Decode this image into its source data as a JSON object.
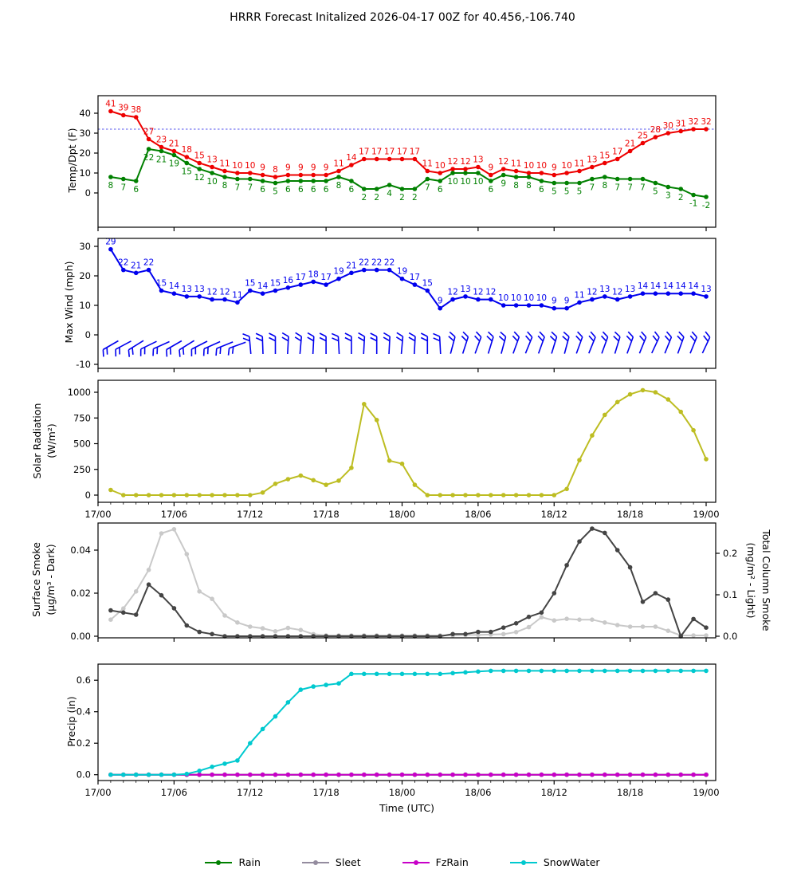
{
  "title": "HRRR Forecast Initalized 2026-04-17 00Z for 40.456,-106.740",
  "x_axis": {
    "label": "Time (UTC)",
    "tick_labels": [
      "17/00",
      "17/06",
      "17/12",
      "17/18",
      "18/00",
      "18/06",
      "18/12",
      "18/18",
      "19/00"
    ],
    "tick_hours": [
      0,
      6,
      12,
      18,
      24,
      30,
      36,
      42,
      48
    ],
    "start_hour_offset": 1
  },
  "legend": [
    {
      "label": "Rain",
      "color": "#008000"
    },
    {
      "label": "Sleet",
      "color": "#948c9f"
    },
    {
      "label": "FzRain",
      "color": "#c800c8"
    },
    {
      "label": "SnowWater",
      "color": "#00c9cf"
    }
  ],
  "chart_data": {
    "type": "line",
    "panels": [
      {
        "id": "temp_dpt",
        "ylabel": "Temp/Dpt (F)",
        "yticks": [
          {
            "v": 0,
            "t": "0"
          },
          {
            "v": 10,
            "t": "10"
          },
          {
            "v": 20,
            "t": "20"
          },
          {
            "v": 30,
            "t": "30"
          },
          {
            "v": 40,
            "t": "40"
          }
        ],
        "freezing_line": 32,
        "series": [
          {
            "name": "temperature_f",
            "color": "#ee0000",
            "label_dy": -6,
            "values": [
              41,
              39,
              38,
              27,
              23,
              21,
              18,
              15,
              13,
              11,
              10,
              10,
              9,
              8,
              9,
              9,
              9,
              9,
              11,
              14,
              17,
              17,
              17,
              17,
              17,
              11,
              10,
              12,
              12,
              13,
              9,
              12,
              11,
              10,
              10,
              9,
              10,
              11,
              13,
              15,
              17,
              21,
              25,
              28,
              30,
              31,
              32,
              32
            ]
          },
          {
            "name": "dewpoint_f",
            "color": "#008000",
            "label_dy": 14,
            "values": [
              8,
              7,
              6,
              22,
              21,
              19,
              15,
              12,
              10,
              8,
              7,
              7,
              6,
              5,
              6,
              6,
              6,
              6,
              8,
              6,
              2,
              2,
              4,
              2,
              2,
              7,
              6,
              10,
              10,
              10,
              6,
              9,
              8,
              8,
              6,
              5,
              5,
              5,
              7,
              8,
              7,
              7,
              7,
              5,
              3,
              2,
              -1,
              -2
            ]
          }
        ]
      },
      {
        "id": "max_wind",
        "ylabel": "Max Wind (mph)",
        "yticks": [
          {
            "v": -10,
            "t": "-10"
          },
          {
            "v": 0,
            "t": "0"
          },
          {
            "v": 10,
            "t": "10"
          },
          {
            "v": 20,
            "t": "20"
          },
          {
            "v": 30,
            "t": "30"
          }
        ],
        "series": [
          {
            "name": "max_wind_mph",
            "color": "#0000ee",
            "label_dy": -6,
            "values": [
              29,
              22,
              21,
              22,
              15,
              14,
              13,
              13,
              12,
              12,
              11,
              15,
              14,
              15,
              16,
              17,
              18,
              17,
              19,
              21,
              22,
              22,
              22,
              19,
              17,
              15,
              9,
              12,
              13,
              12,
              12,
              10,
              10,
              10,
              10,
              9,
              9,
              11,
              12,
              13,
              12,
              13,
              14,
              14,
              14,
              14,
              14,
              13
            ]
          }
        ],
        "barb_angles": [
          240,
          242,
          238,
          244,
          246,
          240,
          238,
          243,
          246,
          248,
          250,
          355,
          358,
          0,
          3,
          5,
          3,
          0,
          357,
          0,
          3,
          0,
          3,
          5,
          3,
          0,
          357,
          15,
          18,
          20,
          17,
          15,
          20,
          22,
          20,
          17,
          15,
          20,
          22,
          20,
          17,
          20,
          22,
          25,
          22,
          20,
          22,
          25
        ]
      },
      {
        "id": "solar",
        "ylabel_line1": "Solar Radiation",
        "ylabel_line2": "(W/m²)",
        "yticks": [
          {
            "v": 0,
            "t": "0"
          },
          {
            "v": 250,
            "t": "250"
          },
          {
            "v": 500,
            "t": "500"
          },
          {
            "v": 750,
            "t": "750"
          },
          {
            "v": 1000,
            "t": "1000"
          }
        ],
        "series": [
          {
            "name": "solar_radiation_wm2",
            "color": "#bdbd22",
            "values": [
              50,
              0,
              0,
              0,
              0,
              0,
              0,
              0,
              0,
              0,
              0,
              0,
              25,
              110,
              155,
              190,
              145,
              100,
              140,
              265,
              885,
              730,
              335,
              305,
              100,
              0,
              0,
              0,
              0,
              0,
              0,
              0,
              0,
              0,
              0,
              0,
              60,
              340,
              580,
              780,
              905,
              980,
              1020,
              1000,
              930,
              810,
              630,
              350
            ]
          }
        ]
      },
      {
        "id": "smoke",
        "ylabel_line1": "Surface Smoke",
        "ylabel_line2": "(μg/m³ - Dark)",
        "right_ylabel_line1": "Total Column Smoke",
        "right_ylabel_line2": "(mg/m² - Light)",
        "yticks": [
          {
            "v": 0,
            "t": "0.00"
          },
          {
            "v": 0.02,
            "t": "0.02"
          },
          {
            "v": 0.04,
            "t": "0.04"
          }
        ],
        "yticks_right": [
          {
            "v": 0,
            "t": "0.0"
          },
          {
            "v": 0.1,
            "t": "0.1"
          },
          {
            "v": 0.2,
            "t": "0.2"
          }
        ],
        "series": [
          {
            "name": "total_column_smoke_mgm2",
            "color": "#c9c9c9",
            "axis": "right",
            "values": [
              0.04,
              0.067,
              0.108,
              0.16,
              0.248,
              0.258,
              0.198,
              0.108,
              0.09,
              0.05,
              0.033,
              0.023,
              0.019,
              0.012,
              0.02,
              0.015,
              0.005,
              0.002,
              0.002,
              0.002,
              0.002,
              0.002,
              0.002,
              0.002,
              0.002,
              0.002,
              0.002,
              0.002,
              0.003,
              0.003,
              0.004,
              0.005,
              0.01,
              0.022,
              0.046,
              0.038,
              0.042,
              0.04,
              0.04,
              0.033,
              0.027,
              0.023,
              0.023,
              0.023,
              0.013,
              0.002,
              0.002,
              0.002
            ]
          },
          {
            "name": "surface_smoke_ugm3",
            "color": "#444444",
            "axis": "left",
            "values": [
              0.012,
              0.011,
              0.01,
              0.024,
              0.019,
              0.013,
              0.005,
              0.002,
              0.001,
              0,
              0,
              0,
              0,
              0,
              0,
              0,
              0,
              0,
              0,
              0,
              0,
              0,
              0,
              0,
              0,
              0,
              0,
              0.001,
              0.001,
              0.002,
              0.002,
              0.004,
              0.006,
              0.009,
              0.011,
              0.02,
              0.033,
              0.044,
              0.05,
              0.048,
              0.04,
              0.032,
              0.016,
              0.02,
              0.017,
              0.0,
              0.008,
              0.004
            ]
          }
        ]
      },
      {
        "id": "precip",
        "ylabel": "Precip (in)",
        "yticks": [
          {
            "v": 0,
            "t": "0.0"
          },
          {
            "v": 0.2,
            "t": "0.2"
          },
          {
            "v": 0.4,
            "t": "0.4"
          },
          {
            "v": 0.6,
            "t": "0.6"
          }
        ],
        "series": [
          {
            "name": "Rain",
            "color": "#008000",
            "values": [
              0,
              0,
              0,
              0,
              0,
              0,
              0,
              0,
              0,
              0,
              0,
              0,
              0,
              0,
              0,
              0,
              0,
              0,
              0,
              0,
              0,
              0,
              0,
              0,
              0,
              0,
              0,
              0,
              0,
              0,
              0,
              0,
              0,
              0,
              0,
              0,
              0,
              0,
              0,
              0,
              0,
              0,
              0,
              0,
              0,
              0,
              0,
              0
            ]
          },
          {
            "name": "Sleet",
            "color": "#948c9f",
            "values": [
              0,
              0,
              0,
              0,
              0,
              0,
              0,
              0,
              0,
              0,
              0,
              0,
              0,
              0,
              0,
              0,
              0,
              0,
              0,
              0,
              0,
              0,
              0,
              0,
              0,
              0,
              0,
              0,
              0,
              0,
              0,
              0,
              0,
              0,
              0,
              0,
              0,
              0,
              0,
              0,
              0,
              0,
              0,
              0,
              0,
              0,
              0,
              0
            ]
          },
          {
            "name": "FzRain",
            "color": "#c800c8",
            "values": [
              0,
              0,
              0,
              0,
              0,
              0,
              0,
              0,
              0,
              0,
              0,
              0,
              0,
              0,
              0,
              0,
              0,
              0,
              0,
              0,
              0,
              0,
              0,
              0,
              0,
              0,
              0,
              0,
              0,
              0,
              0,
              0,
              0,
              0,
              0,
              0,
              0,
              0,
              0,
              0,
              0,
              0,
              0,
              0,
              0,
              0,
              0,
              0
            ]
          },
          {
            "name": "SnowWater",
            "color": "#00c9cf",
            "values": [
              0,
              0,
              0,
              0,
              0,
              0,
              0.005,
              0.025,
              0.05,
              0.07,
              0.09,
              0.2,
              0.29,
              0.37,
              0.46,
              0.54,
              0.56,
              0.57,
              0.58,
              0.64,
              0.64,
              0.64,
              0.64,
              0.64,
              0.64,
              0.64,
              0.64,
              0.645,
              0.65,
              0.655,
              0.66,
              0.66,
              0.66,
              0.66,
              0.66,
              0.66,
              0.66,
              0.66,
              0.66,
              0.66,
              0.66,
              0.66,
              0.66,
              0.66,
              0.66,
              0.66,
              0.66,
              0.66
            ]
          }
        ]
      }
    ]
  }
}
